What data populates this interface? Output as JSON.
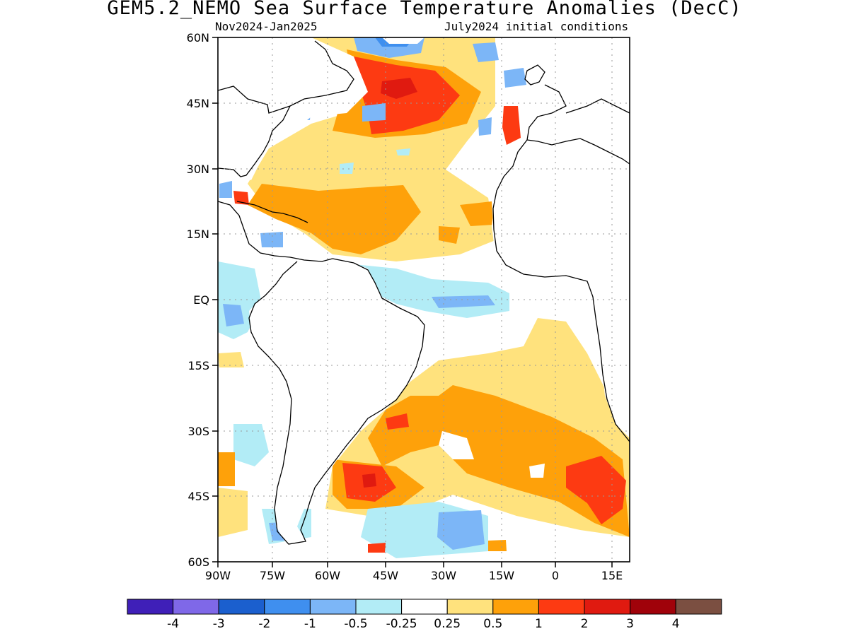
{
  "title": "GEM5.2_NEMO Sea Surface Temperature Anomalies (DecC)",
  "period": "Nov2024-Jan2025",
  "init": "July2024 initial conditions",
  "map": {
    "lat_labels": [
      "60N",
      "45N",
      "30N",
      "15N",
      "EQ",
      "15S",
      "30S",
      "45S",
      "60S"
    ],
    "lon_labels": [
      "90W",
      "75W",
      "60W",
      "45W",
      "30W",
      "15W",
      "0",
      "15E"
    ]
  },
  "legend": {
    "bins": [
      {
        "color": "#3f1fb8"
      },
      {
        "color": "#7f68e8"
      },
      {
        "color": "#1b5fce"
      },
      {
        "color": "#3f8fef"
      },
      {
        "color": "#7cb6f7"
      },
      {
        "color": "#b2ecf6"
      },
      {
        "color": "#ffffff"
      },
      {
        "color": "#ffe27d"
      },
      {
        "color": "#fea10a"
      },
      {
        "color": "#fd3a12"
      },
      {
        "color": "#e01a10"
      },
      {
        "color": "#a0020a"
      },
      {
        "color": "#7b4f41"
      }
    ],
    "labels": [
      "-4",
      "-3",
      "-2",
      "-1",
      "-0.5",
      "-0.25",
      "0.25",
      "0.5",
      "1",
      "2",
      "3",
      "4"
    ]
  }
}
